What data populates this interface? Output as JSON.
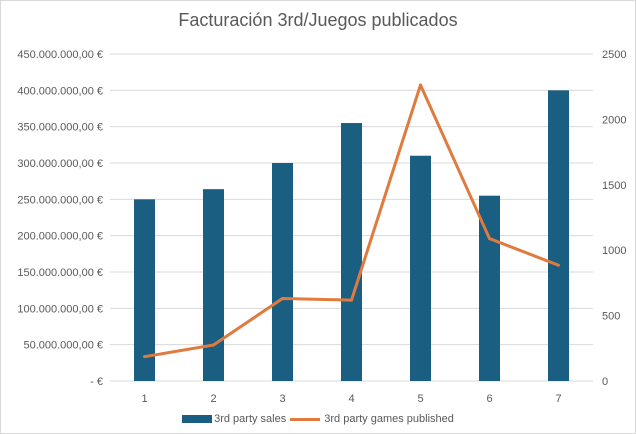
{
  "chart_data": {
    "type": "bar+line",
    "title": "Facturación 3rd/Juegos publicados",
    "categories": [
      "1",
      "2",
      "3",
      "4",
      "5",
      "6",
      "7"
    ],
    "series": [
      {
        "name": "3rd party sales",
        "type": "bar",
        "axis": "left",
        "color": "#1a5e82",
        "values": [
          250000000,
          264000000,
          300000000,
          355000000,
          310000000,
          255000000,
          400000000
        ]
      },
      {
        "name": "3rd party games published",
        "type": "line",
        "axis": "right",
        "color": "#e07a3e",
        "values": [
          186,
          275,
          631,
          618,
          2263,
          1089,
          885
        ]
      }
    ],
    "y_left": {
      "ylim": [
        0,
        450000000
      ],
      "ticks": [
        "- €",
        "50.000.000,00 €",
        "100.000.000,00 €",
        "150.000.000,00 €",
        "200.000.000,00 €",
        "250.000.000,00 €",
        "300.000.000,00 €",
        "350.000.000,00 €",
        "400.000.000,00 €",
        "450.000.000,00 €"
      ]
    },
    "y_right": {
      "ylim": [
        0,
        2500
      ],
      "ticks": [
        "0",
        "500",
        "1000",
        "1500",
        "2000",
        "2500"
      ]
    },
    "grid": true,
    "legend": "bottom"
  }
}
